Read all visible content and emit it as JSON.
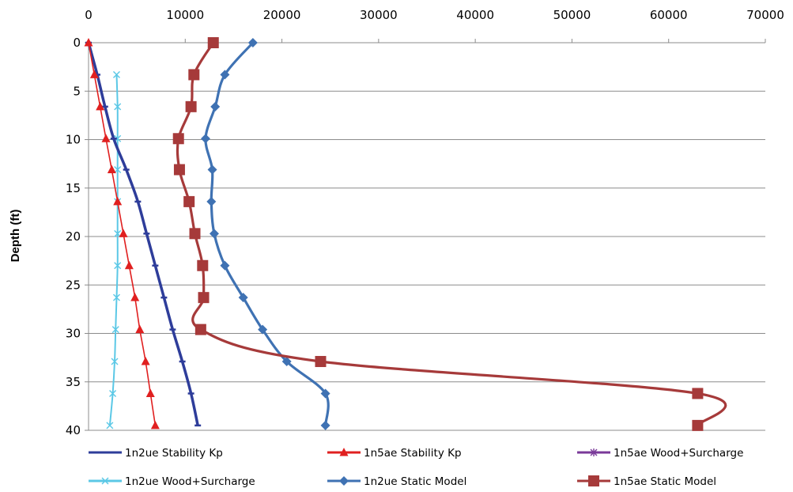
{
  "chart_data": {
    "type": "line",
    "title": "",
    "xlabel": "",
    "ylabel": "Depth (ft)",
    "xlim": [
      0,
      70000
    ],
    "ylim": [
      0,
      40
    ],
    "x_ticks": [
      "0",
      "10000",
      "20000",
      "30000",
      "40000",
      "50000",
      "60000",
      "70000"
    ],
    "y_ticks": [
      "0",
      "5",
      "10",
      "15",
      "20",
      "25",
      "30",
      "35",
      "40"
    ],
    "x_axis_position": "top",
    "y_axis_inverted": true,
    "grid": "horizontal",
    "legend_position": "bottom",
    "series": [
      {
        "name": "1n2ue Stability  Kp",
        "color": "#2E3D9A",
        "marker": "dash",
        "points": [
          [
            0,
            0
          ],
          [
            900,
            3.3
          ],
          [
            1700,
            6.6
          ],
          [
            2600,
            9.9
          ],
          [
            3900,
            13.1
          ],
          [
            5100,
            16.4
          ],
          [
            6000,
            19.7
          ],
          [
            6900,
            23
          ],
          [
            7800,
            26.3
          ],
          [
            8700,
            29.6
          ],
          [
            9700,
            32.9
          ],
          [
            10600,
            36.2
          ],
          [
            11300,
            39.5
          ]
        ]
      },
      {
        "name": "1n5ae Stability  Kp",
        "color": "#E02020",
        "marker": "triangle",
        "points": [
          [
            0,
            0
          ],
          [
            600,
            3.3
          ],
          [
            1200,
            6.6
          ],
          [
            1800,
            9.9
          ],
          [
            2400,
            13.1
          ],
          [
            3000,
            16.4
          ],
          [
            3600,
            19.7
          ],
          [
            4200,
            23
          ],
          [
            4800,
            26.3
          ],
          [
            5300,
            29.6
          ],
          [
            5900,
            32.9
          ],
          [
            6400,
            36.2
          ],
          [
            6900,
            39.5
          ]
        ]
      },
      {
        "name": "1n5ae Wood+Surcharge",
        "color": "#7A3A99",
        "marker": "star",
        "points": []
      },
      {
        "name": "1n2ue Wood+Surcharge",
        "color": "#5BC8E6",
        "marker": "x",
        "points": [
          [
            2900,
            3.3
          ],
          [
            3000,
            6.6
          ],
          [
            3000,
            9.9
          ],
          [
            3000,
            13.1
          ],
          [
            3000,
            16.4
          ],
          [
            3000,
            19.7
          ],
          [
            3000,
            23
          ],
          [
            2900,
            26.3
          ],
          [
            2800,
            29.6
          ],
          [
            2700,
            32.9
          ],
          [
            2500,
            36.2
          ],
          [
            2200,
            39.5
          ]
        ]
      },
      {
        "name": "1n2ue Static Model",
        "color": "#3F72B3",
        "marker": "diamond",
        "points": [
          [
            17000,
            0
          ],
          [
            14100,
            3.3
          ],
          [
            13100,
            6.6
          ],
          [
            12100,
            9.9
          ],
          [
            12800,
            13.1
          ],
          [
            12700,
            16.4
          ],
          [
            13000,
            19.7
          ],
          [
            14100,
            23
          ],
          [
            16000,
            26.3
          ],
          [
            18000,
            29.6
          ],
          [
            20500,
            32.9
          ],
          [
            24500,
            36.2
          ],
          [
            24500,
            39.5
          ]
        ]
      },
      {
        "name": "1n5ae Static Model",
        "color": "#A63A3A",
        "marker": "square",
        "points": [
          [
            12900,
            0
          ],
          [
            10900,
            3.3
          ],
          [
            10600,
            6.6
          ],
          [
            9300,
            9.9
          ],
          [
            9400,
            13.1
          ],
          [
            10400,
            16.4
          ],
          [
            11000,
            19.7
          ],
          [
            11800,
            23
          ],
          [
            11900,
            26.3
          ],
          [
            11600,
            29.6
          ],
          [
            24000,
            32.9
          ],
          [
            63000,
            36.2
          ],
          [
            63000,
            39.5
          ]
        ]
      }
    ]
  }
}
